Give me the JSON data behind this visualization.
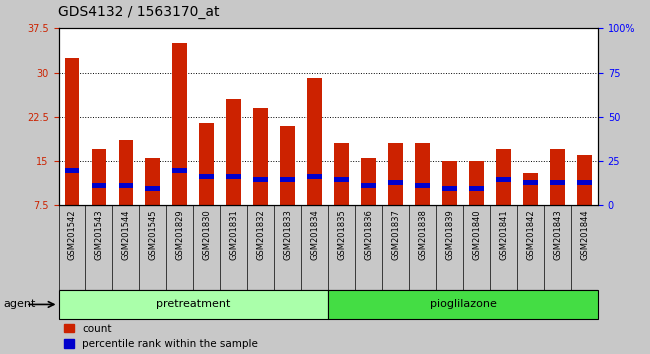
{
  "title": "GDS4132 / 1563170_at",
  "samples": [
    "GSM201542",
    "GSM201543",
    "GSM201544",
    "GSM201545",
    "GSM201829",
    "GSM201830",
    "GSM201831",
    "GSM201832",
    "GSM201833",
    "GSM201834",
    "GSM201835",
    "GSM201836",
    "GSM201837",
    "GSM201838",
    "GSM201839",
    "GSM201840",
    "GSM201841",
    "GSM201842",
    "GSM201843",
    "GSM201844"
  ],
  "count_values": [
    32.5,
    17.0,
    18.5,
    15.5,
    35.0,
    21.5,
    25.5,
    24.0,
    21.0,
    29.0,
    18.0,
    15.5,
    18.0,
    18.0,
    15.0,
    15.0,
    17.0,
    13.0,
    17.0,
    16.0
  ],
  "blue_bottom": [
    13.0,
    10.5,
    10.5,
    10.0,
    13.0,
    12.0,
    12.0,
    11.5,
    11.5,
    12.0,
    11.5,
    10.5,
    11.0,
    10.5,
    10.0,
    10.0,
    11.5,
    11.0,
    11.0,
    11.0
  ],
  "blue_height": [
    0.8,
    0.8,
    0.8,
    0.7,
    0.8,
    0.8,
    0.8,
    0.8,
    0.8,
    0.8,
    0.8,
    0.8,
    0.8,
    0.8,
    0.8,
    0.8,
    0.8,
    0.8,
    0.8,
    0.8
  ],
  "groups": [
    {
      "label": "pretreatment",
      "start": 0,
      "end": 10,
      "color": "#aaffaa"
    },
    {
      "label": "pioglilazone",
      "start": 10,
      "end": 20,
      "color": "#44dd44"
    }
  ],
  "ylim_left": [
    7.5,
    37.5
  ],
  "ylim_right": [
    0,
    100
  ],
  "yticks_left": [
    7.5,
    15.0,
    22.5,
    30.0,
    37.5
  ],
  "yticks_right": [
    0,
    25,
    50,
    75,
    100
  ],
  "bar_color_red": "#cc2200",
  "bar_color_blue": "#0000cc",
  "bar_width": 0.55,
  "fig_bg_color": "#c8c8c8",
  "plot_bg_color": "#ffffff",
  "xtick_bg_color": "#c0c0c0",
  "title_fontsize": 10,
  "tick_fontsize": 7,
  "xtick_fontsize": 6,
  "legend_label_count": "count",
  "legend_label_pct": "percentile rank within the sample",
  "agent_label": "agent"
}
